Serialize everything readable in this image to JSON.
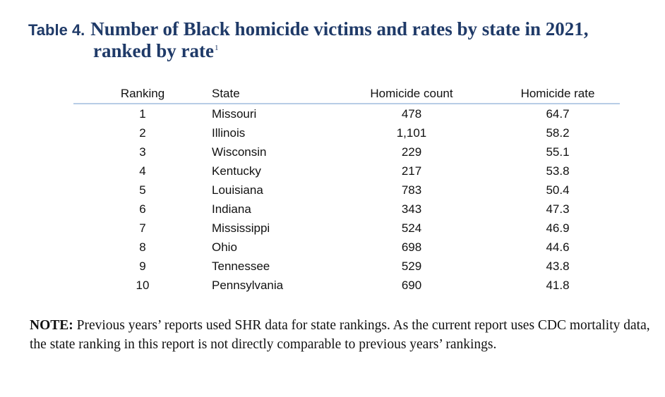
{
  "title": {
    "label": "Table 4.",
    "line1": "Number of Black homicide victims and rates by state in 2021,",
    "line2": "ranked by rate",
    "footnote_mark": "1"
  },
  "table": {
    "headers": {
      "ranking": "Ranking",
      "state": "State",
      "count": "Homicide count",
      "rate": "Homicide rate"
    },
    "rows": [
      {
        "rank": "1",
        "state": "Missouri",
        "count": "478",
        "rate": "64.7"
      },
      {
        "rank": "2",
        "state": "Illinois",
        "count": "1,101",
        "rate": "58.2"
      },
      {
        "rank": "3",
        "state": "Wisconsin",
        "count": "229",
        "rate": "55.1"
      },
      {
        "rank": "4",
        "state": "Kentucky",
        "count": "217",
        "rate": "53.8"
      },
      {
        "rank": "5",
        "state": "Louisiana",
        "count": "783",
        "rate": "50.4"
      },
      {
        "rank": "6",
        "state": "Indiana",
        "count": "343",
        "rate": "47.3"
      },
      {
        "rank": "7",
        "state": "Mississippi",
        "count": "524",
        "rate": "46.9"
      },
      {
        "rank": "8",
        "state": "Ohio",
        "count": "698",
        "rate": "44.6"
      },
      {
        "rank": "9",
        "state": "Tennessee",
        "count": "529",
        "rate": "43.8"
      },
      {
        "rank": "10",
        "state": "Pennsylvania",
        "count": "690",
        "rate": "41.8"
      }
    ]
  },
  "note": {
    "label": "NOTE:",
    "text": "Previous years’ reports used SHR data for state rankings. As the current report uses CDC mortality data, the state ranking in this report is not directly comparable to previous years’ rankings."
  },
  "colors": {
    "title": "#1f3a68",
    "header_rule": "#b7cde6",
    "text": "#111111"
  }
}
